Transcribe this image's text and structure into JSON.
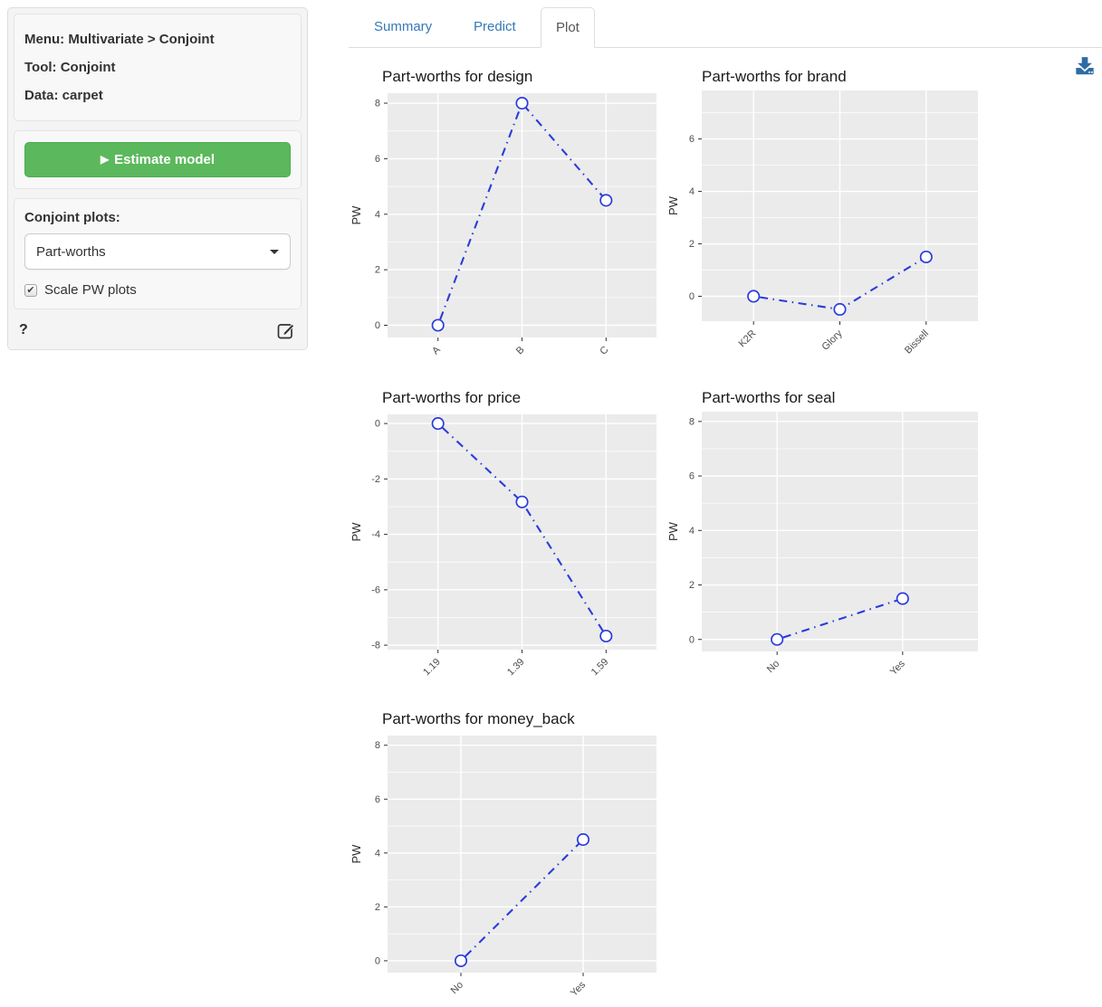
{
  "sidebar": {
    "info": {
      "menu": "Menu: Multivariate > Conjoint",
      "tool": "Tool: Conjoint",
      "data": "Data: carpet"
    },
    "estimate_button_label": "Estimate model",
    "plots_label": "Conjoint plots:",
    "plots_value": "Part-worths",
    "scale_label": "Scale PW plots",
    "scale_checked": true,
    "help_glyph": "?"
  },
  "tabs": [
    {
      "label": "Summary",
      "active": false
    },
    {
      "label": "Predict",
      "active": false
    },
    {
      "label": "Plot",
      "active": true
    }
  ],
  "icons": {
    "download": "download-icon",
    "edit": "edit-report-icon",
    "play": "play-icon",
    "help": "question-mark-icon",
    "caret": "chevron-down-icon",
    "checkbox": "checkbox-checked-icon"
  },
  "colors": {
    "line_blue": "#2a3cdb",
    "panel_gray": "#ebebeb",
    "button_green": "#5cb85c",
    "link_blue": "#337ab7",
    "active_tab_text": "#555555",
    "download_blue": "#2e6da4",
    "tick_text": "#4d4d4d"
  },
  "chart_data": [
    {
      "id": "design",
      "type": "line",
      "title": "Part-worths for design",
      "xlabel": "",
      "ylabel": "PW",
      "legend": "none",
      "grid": true,
      "categories": [
        "A",
        "B",
        "C"
      ],
      "values": [
        0,
        8,
        4.5
      ],
      "yticks": [
        0,
        2,
        4,
        6,
        8
      ],
      "ylim": [
        -0.44,
        8.36
      ]
    },
    {
      "id": "brand",
      "type": "line",
      "title": "Part-worths for brand",
      "xlabel": "",
      "ylabel": "PW",
      "legend": "none",
      "grid": true,
      "categories": [
        "K2R",
        "Glory",
        "Bissell"
      ],
      "values": [
        0,
        -0.5,
        1.5
      ],
      "yticks": [
        0,
        2,
        4,
        6
      ],
      "ylim": [
        -0.95,
        7.85
      ]
    },
    {
      "id": "price",
      "type": "line",
      "title": "Part-worths for price",
      "xlabel": "",
      "ylabel": "PW",
      "legend": "none",
      "grid": true,
      "categories": [
        "1.19",
        "1.39",
        "1.59"
      ],
      "values": [
        0,
        -2.83,
        -7.67
      ],
      "yticks": [
        -8,
        -6,
        -4,
        -2,
        0
      ],
      "ylim": [
        -8.16,
        0.33
      ]
    },
    {
      "id": "seal",
      "type": "line",
      "title": "Part-worths for seal",
      "xlabel": "",
      "ylabel": "PW",
      "legend": "none",
      "grid": true,
      "categories": [
        "No",
        "Yes"
      ],
      "values": [
        0,
        1.5
      ],
      "yticks": [
        0,
        2,
        4,
        6,
        8
      ],
      "ylim": [
        -0.44,
        8.36
      ]
    },
    {
      "id": "money_back",
      "type": "line",
      "title": "Part-worths for money_back",
      "xlabel": "",
      "ylabel": "PW",
      "legend": "none",
      "grid": true,
      "categories": [
        "No",
        "Yes"
      ],
      "values": [
        0,
        4.5
      ],
      "yticks": [
        0,
        2,
        4,
        6,
        8
      ],
      "ylim": [
        -0.44,
        8.36
      ]
    }
  ]
}
